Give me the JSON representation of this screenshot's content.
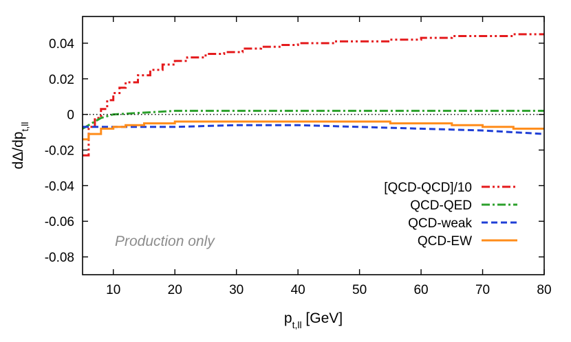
{
  "chart_data": {
    "type": "line",
    "xlabel": "p",
    "xlabel_sub": "t,ll",
    "xlabel_unit": "[GeV]",
    "ylabel": "dΔ/dp",
    "ylabel_sub": "t,ll",
    "xlim": [
      5,
      80
    ],
    "ylim": [
      -0.09,
      0.055
    ],
    "xticks": [
      10,
      20,
      30,
      40,
      50,
      60,
      70,
      80
    ],
    "yticks": [
      0.04,
      0.02,
      0,
      -0.02,
      -0.04,
      -0.06,
      -0.08
    ],
    "ytick_labels": [
      "0.04",
      "0.02",
      "0",
      "-0.02",
      "-0.04",
      "-0.06",
      "-0.08"
    ],
    "zero_line": true,
    "grid": false,
    "legend_position": "bottom-right",
    "annotation": "Production only",
    "series": [
      {
        "name": "[QCD-QCD]/10",
        "color": "#e41a1c",
        "style": "dash-dot-dot",
        "step": true,
        "x": [
          5,
          6,
          7,
          8,
          9,
          10,
          11,
          12,
          14,
          16,
          18,
          20,
          22,
          25,
          28,
          31,
          34,
          37,
          40,
          43,
          46,
          50,
          55,
          60,
          65,
          70,
          75,
          80
        ],
        "y": [
          -0.023,
          -0.007,
          -0.002,
          0.003,
          0.008,
          0.012,
          0.015,
          0.018,
          0.022,
          0.025,
          0.028,
          0.03,
          0.032,
          0.034,
          0.035,
          0.037,
          0.038,
          0.039,
          0.04,
          0.04,
          0.041,
          0.041,
          0.042,
          0.043,
          0.044,
          0.044,
          0.045,
          0.045
        ]
      },
      {
        "name": "QCD-QED",
        "color": "#2ca02c",
        "style": "dash-dot",
        "step": false,
        "x": [
          5,
          6,
          7,
          8,
          10,
          15,
          20,
          30,
          40,
          50,
          60,
          70,
          80
        ],
        "y": [
          -0.008,
          -0.006,
          -0.004,
          -0.002,
          0.0,
          0.001,
          0.002,
          0.002,
          0.002,
          0.002,
          0.002,
          0.002,
          0.002
        ]
      },
      {
        "name": "QCD-weak",
        "color": "#1f3fd6",
        "style": "dashed",
        "step": false,
        "x": [
          5,
          10,
          20,
          30,
          40,
          50,
          60,
          70,
          80
        ],
        "y": [
          -0.007,
          -0.007,
          -0.007,
          -0.006,
          -0.006,
          -0.007,
          -0.008,
          -0.009,
          -0.011
        ]
      },
      {
        "name": "QCD-EW",
        "color": "#ff8c1a",
        "style": "solid",
        "step": true,
        "x": [
          5,
          6,
          8,
          10,
          12,
          15,
          20,
          25,
          30,
          35,
          40,
          45,
          50,
          55,
          60,
          65,
          70,
          75,
          80
        ],
        "y": [
          -0.014,
          -0.011,
          -0.008,
          -0.007,
          -0.006,
          -0.005,
          -0.004,
          -0.004,
          -0.004,
          -0.004,
          -0.004,
          -0.004,
          -0.004,
          -0.005,
          -0.005,
          -0.006,
          -0.007,
          -0.008,
          -0.008
        ]
      }
    ]
  }
}
